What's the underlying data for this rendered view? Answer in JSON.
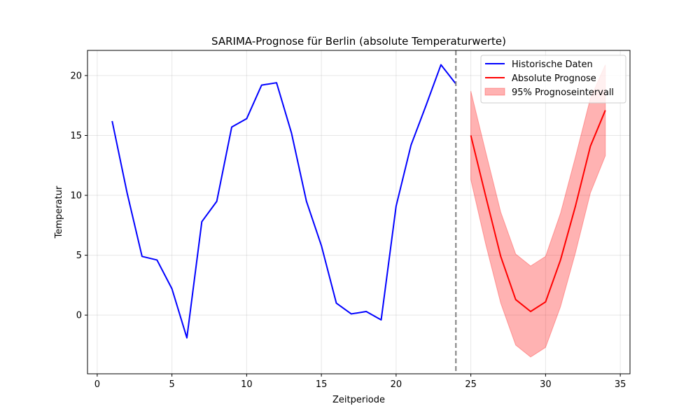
{
  "chart_data": {
    "type": "line",
    "title": "SARIMA-Prognose für Berlin (absolute Temperaturwerte)",
    "xlabel": "Zeitperiode",
    "ylabel": "Temperatur",
    "xlim": [
      -0.65,
      35.65
    ],
    "ylim": [
      -4.9,
      22.1
    ],
    "xticks": [
      0,
      5,
      10,
      15,
      20,
      25,
      30,
      35
    ],
    "yticks": [
      0,
      5,
      10,
      15,
      20
    ],
    "grid": true,
    "legend_position": "top-right",
    "vertical_line": {
      "x": 24,
      "color": "#808080",
      "style": "dashed"
    },
    "series": [
      {
        "name": "Historische Daten",
        "color": "#0000ff",
        "x": [
          1,
          2,
          3,
          4,
          5,
          6,
          7,
          8,
          9,
          10,
          11,
          12,
          13,
          14,
          15,
          16,
          17,
          18,
          19,
          20,
          21,
          22,
          23,
          24
        ],
        "values": [
          16.2,
          10.2,
          4.9,
          4.6,
          2.2,
          -1.9,
          7.8,
          9.5,
          15.7,
          16.4,
          19.2,
          19.4,
          15.2,
          9.5,
          5.8,
          1.0,
          0.1,
          0.3,
          -0.4,
          9.1,
          14.2,
          17.5,
          20.9,
          19.3
        ]
      },
      {
        "name": "Absolute Prognose",
        "color": "#ff0000",
        "x": [
          25,
          26,
          27,
          28,
          29,
          30,
          31,
          32,
          33,
          34
        ],
        "values": [
          15.0,
          9.9,
          4.9,
          1.3,
          0.3,
          1.1,
          4.6,
          9.1,
          14.1,
          17.1
        ]
      }
    ],
    "interval": {
      "name": "95% Prognoseintervall",
      "color": "#ff0000",
      "x": [
        25,
        26,
        27,
        28,
        29,
        30,
        31,
        32,
        33,
        34
      ],
      "lower": [
        11.3,
        5.9,
        1.0,
        -2.5,
        -3.5,
        -2.7,
        0.7,
        5.2,
        10.2,
        13.3
      ],
      "upper": [
        18.7,
        13.6,
        8.6,
        5.1,
        4.1,
        4.9,
        8.5,
        13.2,
        18.1,
        20.9
      ]
    }
  }
}
